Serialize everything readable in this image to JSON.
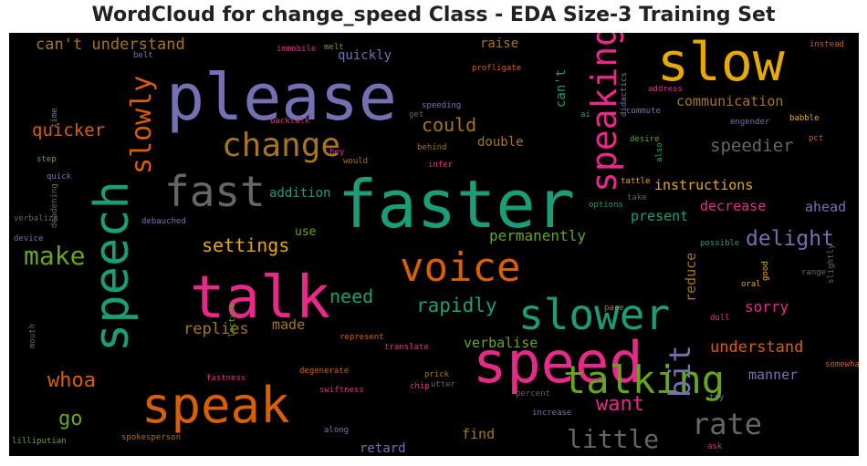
{
  "chart_data": {
    "type": "wordcloud",
    "title": "WordCloud for change_speed Class - EDA Size-3 Training Set",
    "background": "#000000",
    "palette": {
      "teal": "#1b9e77",
      "orange": "#d95f02",
      "purple": "#7570b3",
      "pink": "#e7298a",
      "green": "#66a61e",
      "gold": "#e6ab02",
      "brown": "#a6761d",
      "gray": "#666666"
    },
    "words": [
      {
        "text": "faster",
        "color": "#1b9e77"
      },
      {
        "text": "please",
        "color": "#7570b3"
      },
      {
        "text": "talk",
        "color": "#e7298a"
      },
      {
        "text": "speed",
        "color": "#e7298a"
      },
      {
        "text": "speak",
        "color": "#d95f02"
      },
      {
        "text": "slow",
        "color": "#e6ab02"
      },
      {
        "text": "speech",
        "color": "#1b9e77"
      },
      {
        "text": "fast",
        "color": "#666666"
      },
      {
        "text": "slower",
        "color": "#1b9e77"
      },
      {
        "text": "voice",
        "color": "#d95f02"
      },
      {
        "text": "talking",
        "color": "#66a61e"
      },
      {
        "text": "speaking",
        "color": "#e7298a"
      },
      {
        "text": "change",
        "color": "#a6761d"
      },
      {
        "text": "slowly",
        "color": "#d95f02"
      },
      {
        "text": "rate",
        "color": "#666666"
      },
      {
        "text": "bit",
        "color": "#7570b3"
      },
      {
        "text": "make",
        "color": "#66a61e"
      },
      {
        "text": "little",
        "color": "#666666"
      },
      {
        "text": "delight",
        "color": "#7570b3"
      },
      {
        "text": "whoa",
        "color": "#d95f02"
      },
      {
        "text": "want",
        "color": "#e7298a"
      },
      {
        "text": "rapidly",
        "color": "#1b9e77"
      },
      {
        "text": "settings",
        "color": "#e6ab02"
      },
      {
        "text": "could",
        "color": "#a6761d"
      },
      {
        "text": "need",
        "color": "#1b9e77"
      },
      {
        "text": "speedier",
        "color": "#666666"
      },
      {
        "text": "quicker",
        "color": "#d95f02"
      },
      {
        "text": "can't understand",
        "color": "#a6761d"
      },
      {
        "text": "go",
        "color": "#66a61e"
      },
      {
        "text": "understand",
        "color": "#d95f02"
      },
      {
        "text": "replies",
        "color": "#a6761d"
      },
      {
        "text": "permanently",
        "color": "#66a61e"
      },
      {
        "text": "instructions",
        "color": "#e6ab02"
      },
      {
        "text": "communication",
        "color": "#a6761d"
      },
      {
        "text": "sorry",
        "color": "#e7298a"
      },
      {
        "text": "manner",
        "color": "#7570b3"
      },
      {
        "text": "reduce",
        "color": "#a6761d"
      },
      {
        "text": "decrease",
        "color": "#e7298a"
      },
      {
        "text": "ahead",
        "color": "#7570b3"
      },
      {
        "text": "find",
        "color": "#a6761d"
      },
      {
        "text": "retard",
        "color": "#7570b3"
      },
      {
        "text": "verbalise",
        "color": "#66a61e"
      },
      {
        "text": "made",
        "color": "#a6761d"
      },
      {
        "text": "present",
        "color": "#1b9e77"
      },
      {
        "text": "double",
        "color": "#a6761d"
      },
      {
        "text": "quickly",
        "color": "#7570b3"
      },
      {
        "text": "raise",
        "color": "#a6761d"
      },
      {
        "text": "can't",
        "color": "#1b9e77"
      },
      {
        "text": "addition",
        "color": "#1b9e77"
      },
      {
        "text": "use",
        "color": "#66a61e"
      },
      {
        "text": "immobile",
        "color": "#e7298a"
      },
      {
        "text": "melt",
        "color": "#66a61e"
      },
      {
        "text": "belt",
        "color": "#7570b3"
      },
      {
        "text": "profligate",
        "color": "#d95f02"
      },
      {
        "text": "didactics",
        "color": "#7570b3"
      },
      {
        "text": "instead",
        "color": "#d95f02"
      },
      {
        "text": "address",
        "color": "#e7298a"
      },
      {
        "text": "babble",
        "color": "#e6ab02"
      },
      {
        "text": "ai",
        "color": "#1b9e77"
      },
      {
        "text": "commute",
        "color": "#7570b3"
      },
      {
        "text": "engender",
        "color": "#7570b3"
      },
      {
        "text": "pct",
        "color": "#d95f02"
      },
      {
        "text": "speeding",
        "color": "#7570b3"
      },
      {
        "text": "get",
        "color": "#666666"
      },
      {
        "text": "backtalk",
        "color": "#e7298a"
      },
      {
        "text": "time",
        "color": "#7570b3"
      },
      {
        "text": "desire",
        "color": "#66a61e"
      },
      {
        "text": "also",
        "color": "#1b9e77"
      },
      {
        "text": "behind",
        "color": "#a6761d"
      },
      {
        "text": "step",
        "color": "#66a61e"
      },
      {
        "text": "hey",
        "color": "#e7298a"
      },
      {
        "text": "would",
        "color": "#a6761d"
      },
      {
        "text": "infer",
        "color": "#e7298a"
      },
      {
        "text": "quick",
        "color": "#7570b3"
      },
      {
        "text": "tattle",
        "color": "#e6ab02"
      },
      {
        "text": "take",
        "color": "#666666"
      },
      {
        "text": "options",
        "color": "#1b9e77"
      },
      {
        "text": "verbalize",
        "color": "#666666"
      },
      {
        "text": "debauched",
        "color": "#7570b3"
      },
      {
        "text": "deadening",
        "color": "#666666"
      },
      {
        "text": "device",
        "color": "#7570b3"
      },
      {
        "text": "possible",
        "color": "#1b9e77"
      },
      {
        "text": "range",
        "color": "#666666"
      },
      {
        "text": "good",
        "color": "#e6ab02"
      },
      {
        "text": "oral",
        "color": "#e6ab02"
      },
      {
        "text": "slightly",
        "color": "#666666"
      },
      {
        "text": "pace",
        "color": "#a6761d"
      },
      {
        "text": "dull",
        "color": "#e7298a"
      },
      {
        "text": "lecture",
        "color": "#66a61e"
      },
      {
        "text": "represent",
        "color": "#d95f02"
      },
      {
        "text": "translate",
        "color": "#e7298a"
      },
      {
        "text": "mouth",
        "color": "#666666"
      },
      {
        "text": "fastness",
        "color": "#e7298a"
      },
      {
        "text": "degenerate",
        "color": "#d95f02"
      },
      {
        "text": "prick",
        "color": "#a6761d"
      },
      {
        "text": "chip",
        "color": "#e7298a"
      },
      {
        "text": "utter",
        "color": "#666666"
      },
      {
        "text": "somewhat",
        "color": "#d95f02"
      },
      {
        "text": "swiftness",
        "color": "#e7298a"
      },
      {
        "text": "percent",
        "color": "#666666"
      },
      {
        "text": "try",
        "color": "#7570b3"
      },
      {
        "text": "along",
        "color": "#7570b3"
      },
      {
        "text": "increase",
        "color": "#7570b3"
      },
      {
        "text": "lilliputian",
        "color": "#66a61e"
      },
      {
        "text": "spokesperson",
        "color": "#a6761d"
      },
      {
        "text": "ask",
        "color": "#e7298a"
      }
    ]
  }
}
